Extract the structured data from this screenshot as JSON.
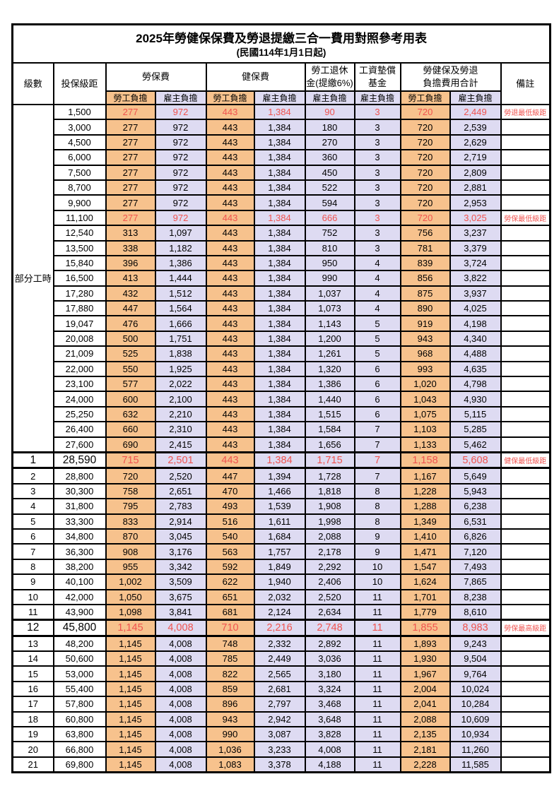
{
  "title": "2025年勞健保保費及勞退提繳三合一費用對照參考用表",
  "subtitle": "(民國114年1月1日起)",
  "header": {
    "level": "級數",
    "bracket": "投保級距",
    "labor_insurance": "勞保費",
    "health_insurance": "健保費",
    "pension_line1": "勞工退休",
    "pension_line2": "金(提繳6%)",
    "wage_fund_line1": "工資墊償",
    "wage_fund_line2": "基金",
    "total_line1": "勞健保及勞退",
    "total_line2": "負擔費用合計",
    "remarks": "備註",
    "employee_share": "勞工負擔",
    "employer_share": "雇主負擔"
  },
  "part_time_label": "部分工時",
  "colors": {
    "employee_bg": "#f7c28d",
    "employer_bg": "#dedbf2",
    "highlight_text": "#f0534f",
    "border": "#000000"
  },
  "table": {
    "rows": [
      {
        "level": "",
        "bracket": "1,500",
        "values": [
          "277",
          "972",
          "443",
          "1,384",
          "90",
          "3",
          "720",
          "2,449"
        ],
        "remark": "勞退最低級距",
        "highlight": true,
        "emphasis": false
      },
      {
        "level": "",
        "bracket": "3,000",
        "values": [
          "277",
          "972",
          "443",
          "1,384",
          "180",
          "3",
          "720",
          "2,539"
        ],
        "remark": "",
        "highlight": false,
        "emphasis": false
      },
      {
        "level": "",
        "bracket": "4,500",
        "values": [
          "277",
          "972",
          "443",
          "1,384",
          "270",
          "3",
          "720",
          "2,629"
        ],
        "remark": "",
        "highlight": false,
        "emphasis": false
      },
      {
        "level": "",
        "bracket": "6,000",
        "values": [
          "277",
          "972",
          "443",
          "1,384",
          "360",
          "3",
          "720",
          "2,719"
        ],
        "remark": "",
        "highlight": false,
        "emphasis": false
      },
      {
        "level": "",
        "bracket": "7,500",
        "values": [
          "277",
          "972",
          "443",
          "1,384",
          "450",
          "3",
          "720",
          "2,809"
        ],
        "remark": "",
        "highlight": false,
        "emphasis": false
      },
      {
        "level": "",
        "bracket": "8,700",
        "values": [
          "277",
          "972",
          "443",
          "1,384",
          "522",
          "3",
          "720",
          "2,881"
        ],
        "remark": "",
        "highlight": false,
        "emphasis": false
      },
      {
        "level": "",
        "bracket": "9,900",
        "values": [
          "277",
          "972",
          "443",
          "1,384",
          "594",
          "3",
          "720",
          "2,953"
        ],
        "remark": "",
        "highlight": false,
        "emphasis": false
      },
      {
        "level": "",
        "bracket": "11,100",
        "values": [
          "277",
          "972",
          "443",
          "1,384",
          "666",
          "3",
          "720",
          "3,025"
        ],
        "remark": "勞保最低級距",
        "highlight": true,
        "emphasis": false
      },
      {
        "level": "",
        "bracket": "12,540",
        "values": [
          "313",
          "1,097",
          "443",
          "1,384",
          "752",
          "3",
          "756",
          "3,237"
        ],
        "remark": "",
        "highlight": false,
        "emphasis": false
      },
      {
        "level": "",
        "bracket": "13,500",
        "values": [
          "338",
          "1,182",
          "443",
          "1,384",
          "810",
          "3",
          "781",
          "3,379"
        ],
        "remark": "",
        "highlight": false,
        "emphasis": false
      },
      {
        "level": "",
        "bracket": "15,840",
        "values": [
          "396",
          "1,386",
          "443",
          "1,384",
          "950",
          "4",
          "839",
          "3,724"
        ],
        "remark": "",
        "highlight": false,
        "emphasis": false
      },
      {
        "level": "",
        "bracket": "16,500",
        "values": [
          "413",
          "1,444",
          "443",
          "1,384",
          "990",
          "4",
          "856",
          "3,822"
        ],
        "remark": "",
        "highlight": false,
        "emphasis": false
      },
      {
        "level": "",
        "bracket": "17,280",
        "values": [
          "432",
          "1,512",
          "443",
          "1,384",
          "1,037",
          "4",
          "875",
          "3,937"
        ],
        "remark": "",
        "highlight": false,
        "emphasis": false
      },
      {
        "level": "",
        "bracket": "17,880",
        "values": [
          "447",
          "1,564",
          "443",
          "1,384",
          "1,073",
          "4",
          "890",
          "4,025"
        ],
        "remark": "",
        "highlight": false,
        "emphasis": false
      },
      {
        "level": "",
        "bracket": "19,047",
        "values": [
          "476",
          "1,666",
          "443",
          "1,384",
          "1,143",
          "5",
          "919",
          "4,198"
        ],
        "remark": "",
        "highlight": false,
        "emphasis": false
      },
      {
        "level": "",
        "bracket": "20,008",
        "values": [
          "500",
          "1,751",
          "443",
          "1,384",
          "1,200",
          "5",
          "943",
          "4,340"
        ],
        "remark": "",
        "highlight": false,
        "emphasis": false
      },
      {
        "level": "",
        "bracket": "21,009",
        "values": [
          "525",
          "1,838",
          "443",
          "1,384",
          "1,261",
          "5",
          "968",
          "4,488"
        ],
        "remark": "",
        "highlight": false,
        "emphasis": false
      },
      {
        "level": "",
        "bracket": "22,000",
        "values": [
          "550",
          "1,925",
          "443",
          "1,384",
          "1,320",
          "6",
          "993",
          "4,635"
        ],
        "remark": "",
        "highlight": false,
        "emphasis": false
      },
      {
        "level": "",
        "bracket": "23,100",
        "values": [
          "577",
          "2,022",
          "443",
          "1,384",
          "1,386",
          "6",
          "1,020",
          "4,798"
        ],
        "remark": "",
        "highlight": false,
        "emphasis": false
      },
      {
        "level": "",
        "bracket": "24,000",
        "values": [
          "600",
          "2,100",
          "443",
          "1,384",
          "1,440",
          "6",
          "1,043",
          "4,930"
        ],
        "remark": "",
        "highlight": false,
        "emphasis": false
      },
      {
        "level": "",
        "bracket": "25,250",
        "values": [
          "632",
          "2,210",
          "443",
          "1,384",
          "1,515",
          "6",
          "1,075",
          "5,115"
        ],
        "remark": "",
        "highlight": false,
        "emphasis": false
      },
      {
        "level": "",
        "bracket": "26,400",
        "values": [
          "660",
          "2,310",
          "443",
          "1,384",
          "1,584",
          "7",
          "1,103",
          "5,285"
        ],
        "remark": "",
        "highlight": false,
        "emphasis": false
      },
      {
        "level": "",
        "bracket": "27,600",
        "values": [
          "690",
          "2,415",
          "443",
          "1,384",
          "1,656",
          "7",
          "1,133",
          "5,462"
        ],
        "remark": "",
        "highlight": false,
        "emphasis": false
      },
      {
        "level": "1",
        "bracket": "28,590",
        "values": [
          "715",
          "2,501",
          "443",
          "1,384",
          "1,715",
          "7",
          "1,158",
          "5,608"
        ],
        "remark": "健保最低級距",
        "highlight": true,
        "emphasis": true
      },
      {
        "level": "2",
        "bracket": "28,800",
        "values": [
          "720",
          "2,520",
          "447",
          "1,394",
          "1,728",
          "7",
          "1,167",
          "5,649"
        ],
        "remark": "",
        "highlight": false,
        "emphasis": false
      },
      {
        "level": "3",
        "bracket": "30,300",
        "values": [
          "758",
          "2,651",
          "470",
          "1,466",
          "1,818",
          "8",
          "1,228",
          "5,943"
        ],
        "remark": "",
        "highlight": false,
        "emphasis": false
      },
      {
        "level": "4",
        "bracket": "31,800",
        "values": [
          "795",
          "2,783",
          "493",
          "1,539",
          "1,908",
          "8",
          "1,288",
          "6,238"
        ],
        "remark": "",
        "highlight": false,
        "emphasis": false
      },
      {
        "level": "5",
        "bracket": "33,300",
        "values": [
          "833",
          "2,914",
          "516",
          "1,611",
          "1,998",
          "8",
          "1,349",
          "6,531"
        ],
        "remark": "",
        "highlight": false,
        "emphasis": false
      },
      {
        "level": "6",
        "bracket": "34,800",
        "values": [
          "870",
          "3,045",
          "540",
          "1,684",
          "2,088",
          "9",
          "1,410",
          "6,826"
        ],
        "remark": "",
        "highlight": false,
        "emphasis": false
      },
      {
        "level": "7",
        "bracket": "36,300",
        "values": [
          "908",
          "3,176",
          "563",
          "1,757",
          "2,178",
          "9",
          "1,471",
          "7,120"
        ],
        "remark": "",
        "highlight": false,
        "emphasis": false
      },
      {
        "level": "8",
        "bracket": "38,200",
        "values": [
          "955",
          "3,342",
          "592",
          "1,849",
          "2,292",
          "10",
          "1,547",
          "7,493"
        ],
        "remark": "",
        "highlight": false,
        "emphasis": false
      },
      {
        "level": "9",
        "bracket": "40,100",
        "values": [
          "1,002",
          "3,509",
          "622",
          "1,940",
          "2,406",
          "10",
          "1,624",
          "7,865"
        ],
        "remark": "",
        "highlight": false,
        "emphasis": false
      },
      {
        "level": "10",
        "bracket": "42,000",
        "values": [
          "1,050",
          "3,675",
          "651",
          "2,032",
          "2,520",
          "11",
          "1,701",
          "8,238"
        ],
        "remark": "",
        "highlight": false,
        "emphasis": false
      },
      {
        "level": "11",
        "bracket": "43,900",
        "values": [
          "1,098",
          "3,841",
          "681",
          "2,124",
          "2,634",
          "11",
          "1,779",
          "8,610"
        ],
        "remark": "",
        "highlight": false,
        "emphasis": false
      },
      {
        "level": "12",
        "bracket": "45,800",
        "values": [
          "1,145",
          "4,008",
          "710",
          "2,216",
          "2,748",
          "11",
          "1,855",
          "8,983"
        ],
        "remark": "勞保最高級距",
        "highlight": true,
        "emphasis": true
      },
      {
        "level": "13",
        "bracket": "48,200",
        "values": [
          "1,145",
          "4,008",
          "748",
          "2,332",
          "2,892",
          "11",
          "1,893",
          "9,243"
        ],
        "remark": "",
        "highlight": false,
        "emphasis": false
      },
      {
        "level": "14",
        "bracket": "50,600",
        "values": [
          "1,145",
          "4,008",
          "785",
          "2,449",
          "3,036",
          "11",
          "1,930",
          "9,504"
        ],
        "remark": "",
        "highlight": false,
        "emphasis": false
      },
      {
        "level": "15",
        "bracket": "53,000",
        "values": [
          "1,145",
          "4,008",
          "822",
          "2,565",
          "3,180",
          "11",
          "1,967",
          "9,764"
        ],
        "remark": "",
        "highlight": false,
        "emphasis": false
      },
      {
        "level": "16",
        "bracket": "55,400",
        "values": [
          "1,145",
          "4,008",
          "859",
          "2,681",
          "3,324",
          "11",
          "2,004",
          "10,024"
        ],
        "remark": "",
        "highlight": false,
        "emphasis": false
      },
      {
        "level": "17",
        "bracket": "57,800",
        "values": [
          "1,145",
          "4,008",
          "896",
          "2,797",
          "3,468",
          "11",
          "2,041",
          "10,284"
        ],
        "remark": "",
        "highlight": false,
        "emphasis": false
      },
      {
        "level": "18",
        "bracket": "60,800",
        "values": [
          "1,145",
          "4,008",
          "943",
          "2,942",
          "3,648",
          "11",
          "2,088",
          "10,609"
        ],
        "remark": "",
        "highlight": false,
        "emphasis": false
      },
      {
        "level": "19",
        "bracket": "63,800",
        "values": [
          "1,145",
          "4,008",
          "990",
          "3,087",
          "3,828",
          "11",
          "2,135",
          "10,934"
        ],
        "remark": "",
        "highlight": false,
        "emphasis": false
      },
      {
        "level": "20",
        "bracket": "66,800",
        "values": [
          "1,145",
          "4,008",
          "1,036",
          "3,233",
          "4,008",
          "11",
          "2,181",
          "11,260"
        ],
        "remark": "",
        "highlight": false,
        "emphasis": false
      },
      {
        "level": "21",
        "bracket": "69,800",
        "values": [
          "1,145",
          "4,008",
          "1,083",
          "3,378",
          "4,188",
          "11",
          "2,228",
          "11,585"
        ],
        "remark": "",
        "highlight": false,
        "emphasis": false
      }
    ]
  }
}
